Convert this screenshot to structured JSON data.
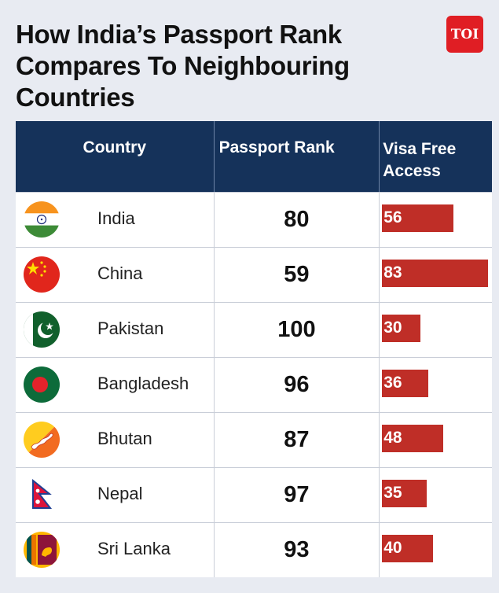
{
  "header": {
    "title": "How India’s Passport Rank Compares To Neighbouring Countries",
    "logo_text": "TOI"
  },
  "chart_data": {
    "type": "table",
    "columns": [
      "Country",
      "Passport Rank",
      "Visa Free Access"
    ],
    "rows": [
      {
        "country": "India",
        "rank": 80,
        "visa_free": 56,
        "flag": "india-flag-icon"
      },
      {
        "country": "China",
        "rank": 59,
        "visa_free": 83,
        "flag": "china-flag-icon"
      },
      {
        "country": "Pakistan",
        "rank": 100,
        "visa_free": 30,
        "flag": "pakistan-flag-icon"
      },
      {
        "country": "Bangladesh",
        "rank": 96,
        "visa_free": 36,
        "flag": "bangladesh-flag-icon"
      },
      {
        "country": "Bhutan",
        "rank": 87,
        "visa_free": 48,
        "flag": "bhutan-flag-icon"
      },
      {
        "country": "Nepal",
        "rank": 97,
        "visa_free": 35,
        "flag": "nepal-flag-icon"
      },
      {
        "country": "Sri Lanka",
        "rank": 93,
        "visa_free": 40,
        "flag": "sri-lanka-flag-icon"
      }
    ],
    "bar_scale_max": 83
  },
  "colors": {
    "header_bg": "#15325a",
    "bar": "#bf2e27",
    "logo": "#e01e24",
    "page_bg": "#e8ebf2"
  }
}
